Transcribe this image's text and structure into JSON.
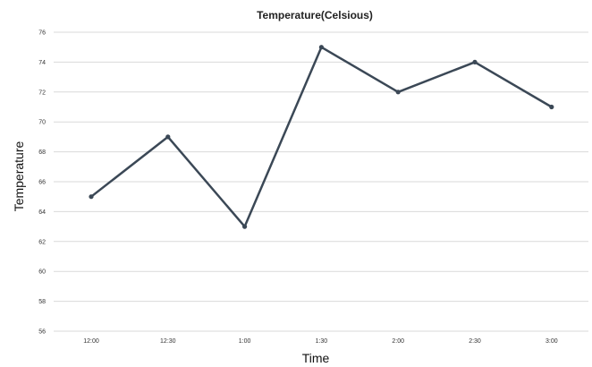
{
  "chart_data": {
    "type": "line",
    "title": "Temperature(Celsious)",
    "xlabel": "Time",
    "ylabel": "Temperature",
    "categories": [
      "12:00",
      "12:30",
      "1:00",
      "1:30",
      "2:00",
      "2:30",
      "3:00"
    ],
    "series": [
      {
        "values": [
          65,
          69,
          63,
          75,
          72,
          74,
          71
        ]
      }
    ],
    "ylim": [
      56,
      76
    ],
    "yticks": [
      56,
      58,
      60,
      62,
      64,
      66,
      68,
      70,
      72,
      74,
      76
    ],
    "grid": true,
    "line_color": "#3b4856"
  }
}
